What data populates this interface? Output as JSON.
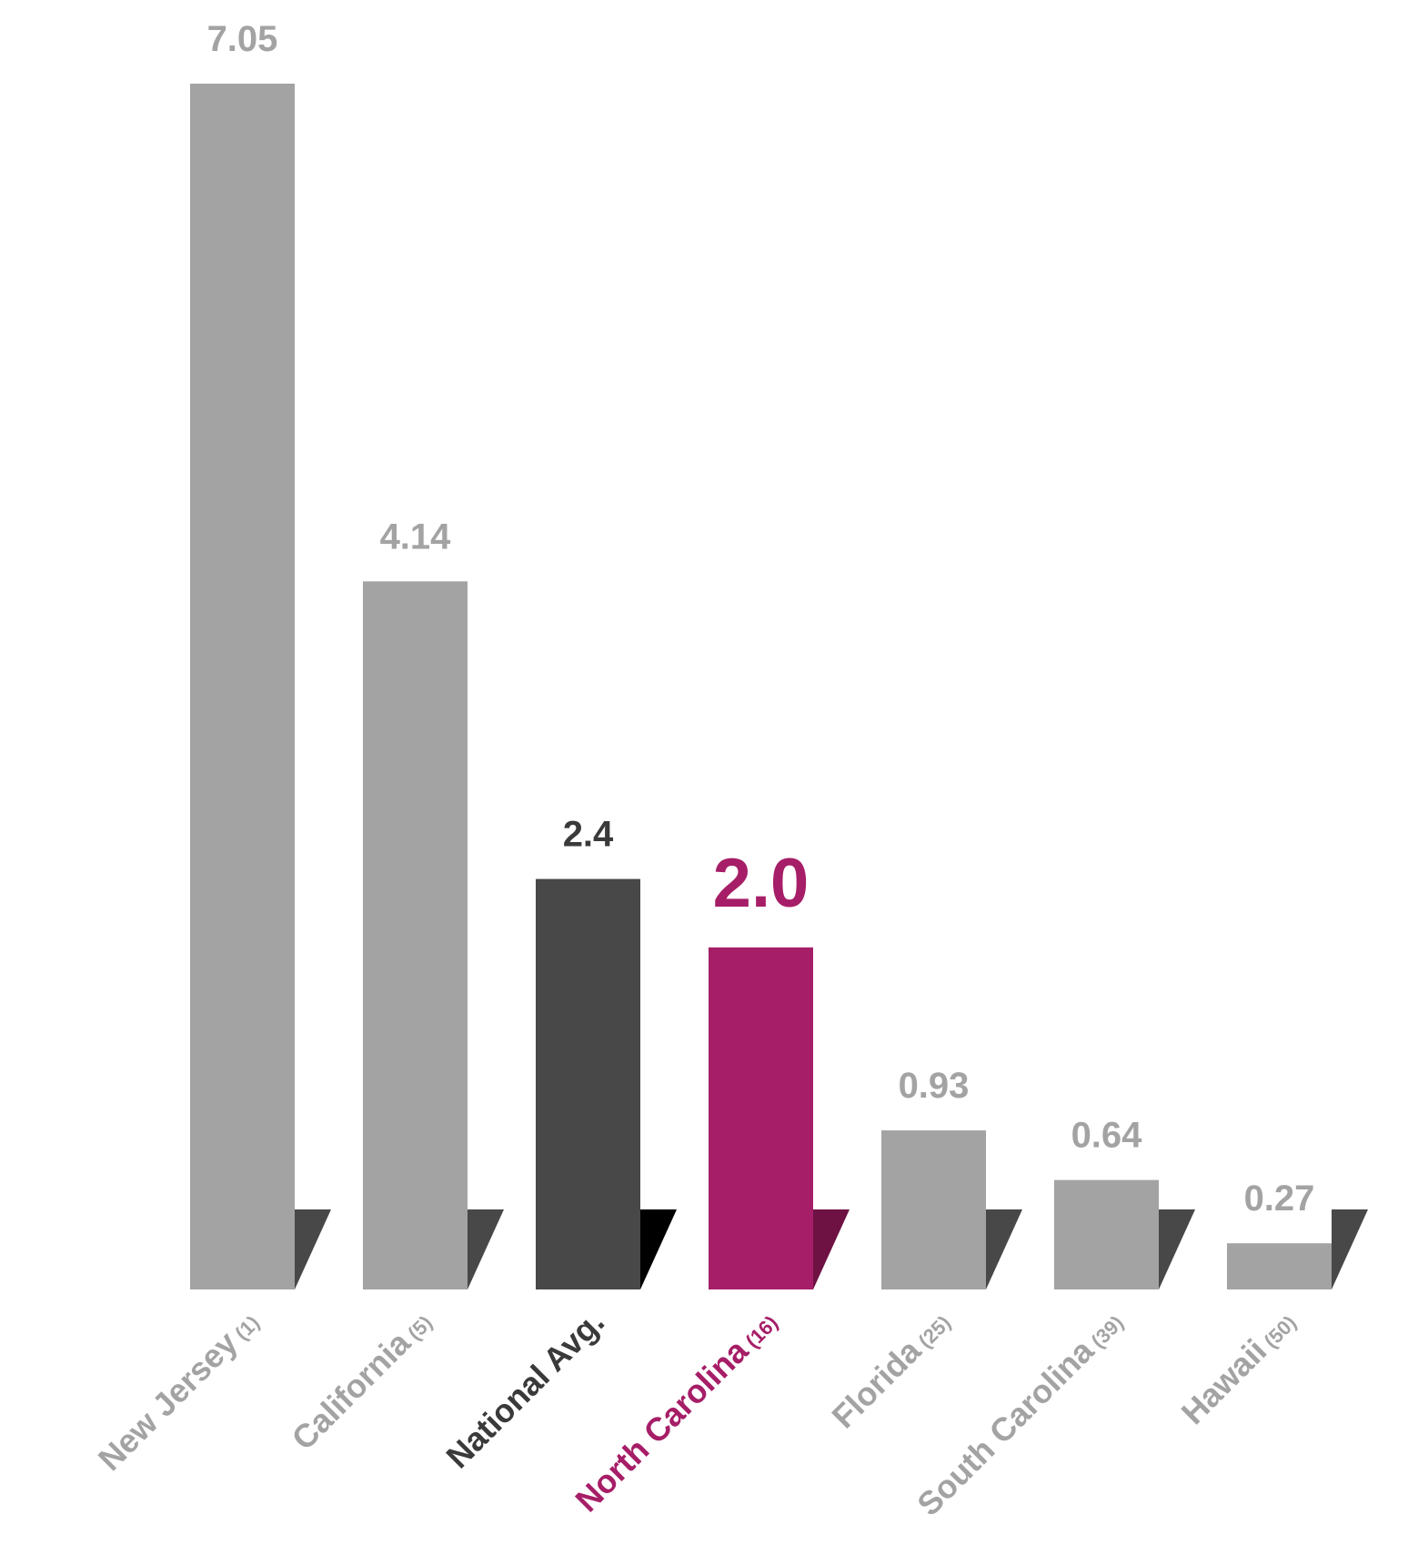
{
  "chart_data": {
    "type": "bar",
    "categories": [
      {
        "name": "New Jersey",
        "rank": "(1)"
      },
      {
        "name": "California",
        "rank": "(5)"
      },
      {
        "name": "National Avg.",
        "rank": ""
      },
      {
        "name": "North Carolina",
        "rank": "(16)"
      },
      {
        "name": "Florida",
        "rank": "(25)"
      },
      {
        "name": "South Carolina",
        "rank": "(39)"
      },
      {
        "name": "Hawaii",
        "rank": "(50)"
      }
    ],
    "values": [
      7.05,
      4.14,
      2.4,
      2.0,
      0.93,
      0.64,
      0.27
    ],
    "value_labels": [
      "7.05",
      "4.14",
      "2.4",
      "2.0",
      "0.93",
      "0.64",
      "0.27"
    ],
    "highlight": {
      "National Avg.": "dark",
      "North Carolina": "accent"
    },
    "colors": {
      "default_bar": "#a3a3a3",
      "default_label": "#a3a3a3",
      "default_shadow": "#484848",
      "national_bar": "#484848",
      "national_label": "#3a3a3a",
      "national_shadow": "#000000",
      "accent_bar": "#a61e67",
      "accent_label": "#a61e67",
      "accent_shadow": "#6e1244"
    },
    "title": "",
    "xlabel": "",
    "ylabel": "",
    "ylim": [
      0,
      7.05
    ],
    "grid": false,
    "legend": "none"
  }
}
